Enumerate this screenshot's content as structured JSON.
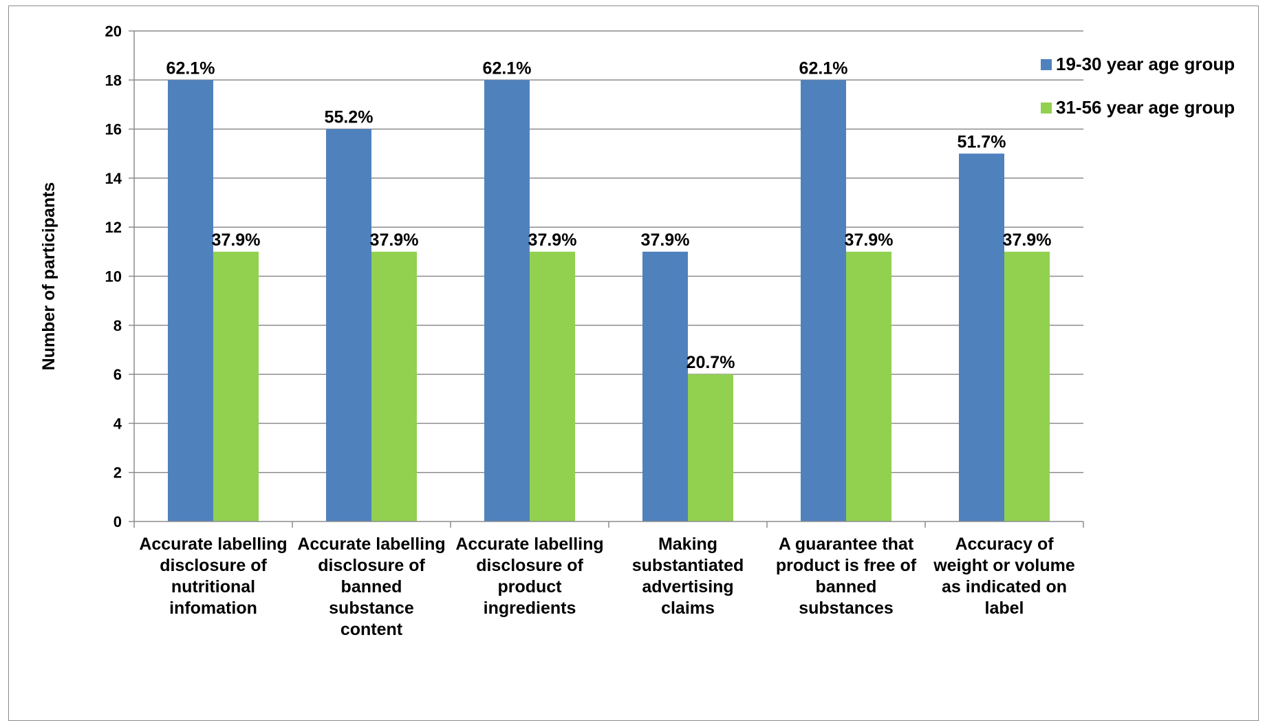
{
  "chart_data": {
    "type": "bar",
    "title": "",
    "xlabel": "",
    "ylabel": "Number of participants",
    "ylim": [
      0,
      20
    ],
    "y_ticks": [
      0,
      2,
      4,
      6,
      8,
      10,
      12,
      14,
      16,
      18,
      20
    ],
    "grid": true,
    "legend_position": "top-right",
    "categories": [
      [
        "Accurate labelling",
        "disclosure of",
        "nutritional",
        "infomation"
      ],
      [
        "Accurate labelling",
        "disclosure of",
        "banned",
        "substance",
        "content"
      ],
      [
        "Accurate labelling",
        "disclosure of",
        "product",
        "ingredients"
      ],
      [
        "Making",
        "substantiated",
        "advertising",
        "claims"
      ],
      [
        "A guarantee that",
        "product is free of",
        "banned",
        "substances"
      ],
      [
        "Accuracy of",
        "weight or volume",
        "as indicated on",
        "label"
      ]
    ],
    "series": [
      {
        "name": "19-30 year age group",
        "color": "#4f81bd",
        "values": [
          18,
          16,
          18,
          11,
          18,
          15
        ],
        "labels": [
          "62.1%",
          "55.2%",
          "62.1%",
          "37.9%",
          "62.1%",
          "51.7%"
        ]
      },
      {
        "name": "31-56 year age group",
        "color": "#92d050",
        "values": [
          11,
          11,
          11,
          6,
          11,
          11
        ],
        "labels": [
          "37.9%",
          "37.9%",
          "37.9%",
          "20.7%",
          "37.9%",
          "37.9%"
        ]
      }
    ]
  }
}
